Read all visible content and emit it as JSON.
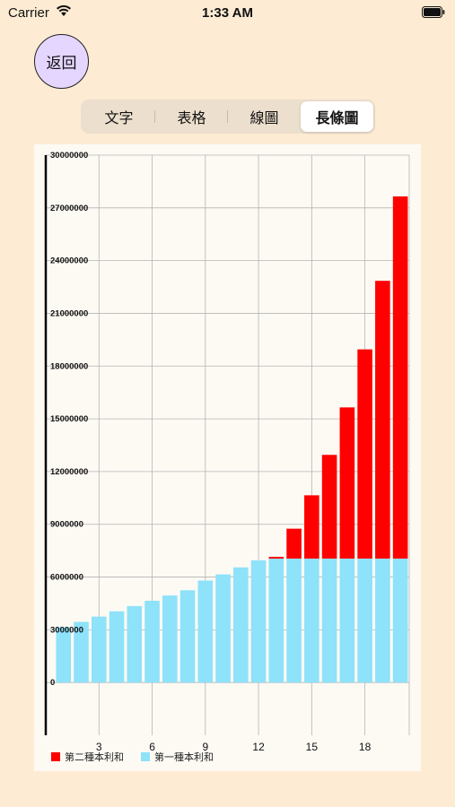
{
  "status_bar": {
    "carrier": "Carrier",
    "time": "1:33 AM",
    "icons": [
      "wifi-icon",
      "battery-icon"
    ]
  },
  "back_button": {
    "label": "返回"
  },
  "tabs": [
    {
      "label": "文字",
      "selected": false
    },
    {
      "label": "表格",
      "selected": false
    },
    {
      "label": "線圖",
      "selected": false
    },
    {
      "label": "長條圖",
      "selected": true
    }
  ],
  "colors": {
    "background": "#fdebd3",
    "series_red": "#ff0000",
    "series_blue": "#8ee2fa"
  },
  "chart_data": {
    "type": "bar",
    "stacked": true,
    "grid": true,
    "legend_position": "bottom-left",
    "ylim": [
      -3000000,
      30000000
    ],
    "y_ticks": [
      0,
      3000000,
      6000000,
      9000000,
      12000000,
      15000000,
      18000000,
      21000000,
      24000000,
      27000000,
      30000000
    ],
    "y_tick_labels": [
      "0",
      "3000000",
      "6000000",
      "9000000",
      "12000000",
      "15000000",
      "18000000",
      "21000000",
      "24000000",
      "27000000",
      "30000000"
    ],
    "xlim": [
      0,
      20.5
    ],
    "x_ticks": [
      3,
      6,
      9,
      12,
      15,
      18
    ],
    "x_tick_labels": [
      "3",
      "6",
      "9",
      "12",
      "15",
      "18"
    ],
    "x": [
      1,
      2,
      3,
      4,
      5,
      6,
      7,
      8,
      9,
      10,
      11,
      12,
      13,
      14,
      15,
      16,
      17,
      18,
      19,
      20
    ],
    "series": [
      {
        "name": "第一種本利和",
        "color": "#8ee2fa",
        "values": [
          3150000,
          3450000,
          3750000,
          4050000,
          4350000,
          4650000,
          4950000,
          5250000,
          5800000,
          6150000,
          6550000,
          6950000,
          7050000,
          7050000,
          7050000,
          7050000,
          7050000,
          7050000,
          7050000,
          7050000
        ]
      },
      {
        "name": "第二種本利和",
        "color": "#ff0000",
        "values": [
          0,
          0,
          0,
          0,
          0,
          0,
          0,
          0,
          0,
          0,
          0,
          0,
          100000,
          1700000,
          3600000,
          5900000,
          8600000,
          11900000,
          15800000,
          20600000
        ]
      }
    ],
    "legend": [
      {
        "name": "第二種本利和",
        "color": "#ff0000"
      },
      {
        "name": "第一種本利和",
        "color": "#8ee2fa"
      }
    ]
  }
}
